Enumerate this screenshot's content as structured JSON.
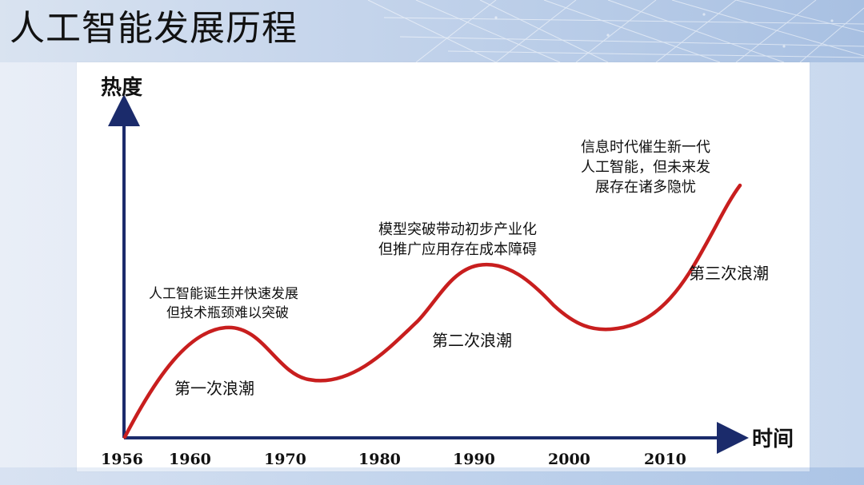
{
  "slide": {
    "title": "人工智能发展历程"
  },
  "axes": {
    "y_label": "热度",
    "x_label": "时间",
    "ticks": [
      "1956",
      "1960",
      "1970",
      "1980",
      "1990",
      "2000",
      "2010"
    ]
  },
  "waves": [
    {
      "name": "第一次浪潮",
      "note_lines": [
        "人工智能诞生并快速发展",
        "但技术瓶颈难以突破"
      ]
    },
    {
      "name": "第二次浪潮",
      "note_lines": [
        "模型突破带动初步产业化",
        "但推广应用存在成本障碍"
      ]
    },
    {
      "name": "第三次浪潮",
      "note_lines": [
        "信息时代催生新一代",
        "人工智能，但未来发",
        "展存在诸多隐忧"
      ]
    }
  ],
  "colors": {
    "curve": "#c81e1e",
    "axis": "#1b2b6b",
    "text": "#111111"
  }
}
